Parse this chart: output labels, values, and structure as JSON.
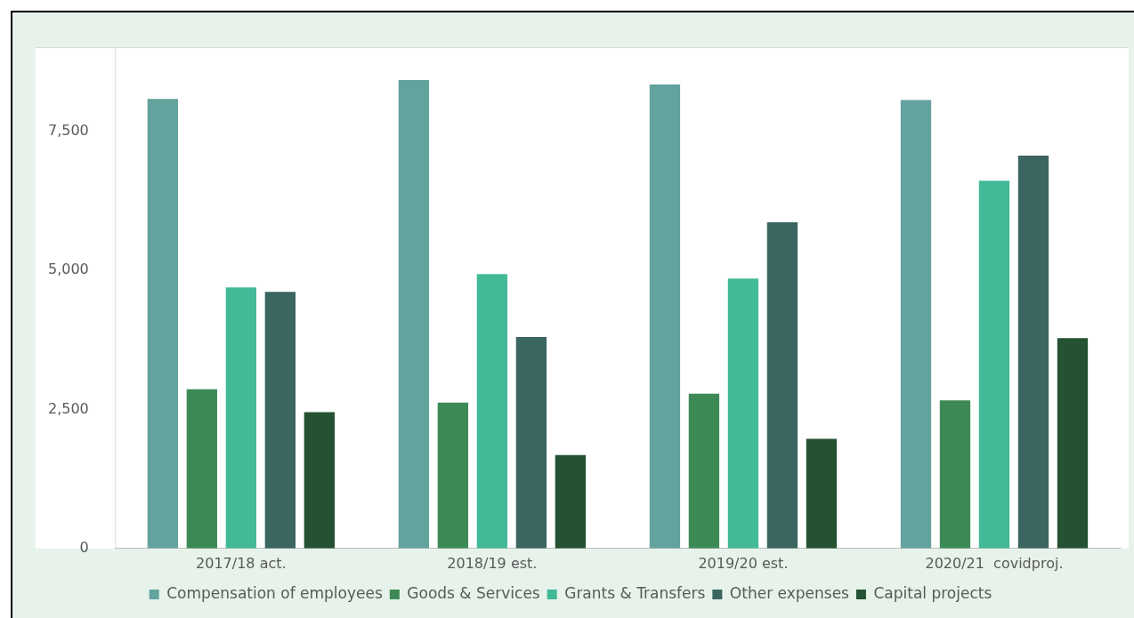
{
  "chart_data": {
    "type": "bar",
    "categories": [
      "2017/18 act.",
      "2018/19 est.",
      "2019/20 est.",
      "2020/21  covidproj."
    ],
    "series": [
      {
        "name": "Compensation of employees",
        "color": "#63a39d",
        "values": [
          8080,
          8420,
          8340,
          8060
        ]
      },
      {
        "name": "Goods & Services",
        "color": "#3e8a56",
        "values": [
          2860,
          2620,
          2780,
          2660
        ]
      },
      {
        "name": "Grants & Transfers",
        "color": "#42ba98",
        "values": [
          4690,
          4930,
          4850,
          6610
        ]
      },
      {
        "name": "Other expenses",
        "color": "#3a6560",
        "values": [
          4610,
          3800,
          5860,
          7060
        ]
      },
      {
        "name": "Capital projects",
        "color": "#245233",
        "values": [
          2450,
          1680,
          1970,
          3780
        ]
      }
    ],
    "ylim": [
      0,
      9000
    ],
    "yticks": [
      0,
      {
        "value": 2500,
        "label": "2,500"
      },
      {
        "value": 5000,
        "label": "5,000"
      },
      {
        "value": 7500,
        "label": "7,500"
      }
    ],
    "grid": false,
    "legend": "bottom"
  }
}
